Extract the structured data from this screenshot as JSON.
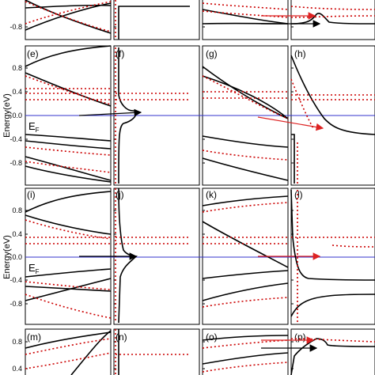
{
  "figure": {
    "y_axis_label": "Energy(eV)",
    "fermi_label_main": "E",
    "fermi_label_sub": "F",
    "colors": {
      "bands_solid": "#000000",
      "bands_dotted": "#cc0000",
      "fermi_line": "#3333cc",
      "arrow_red": "#dd2222",
      "arrow_black": "#000000"
    },
    "rows": [
      {
        "id": "top-partial",
        "panel_labels": [
          "",
          "",
          "",
          ""
        ],
        "y_ticks": [
          "-0.8"
        ]
      },
      {
        "id": "middle-1",
        "panel_labels": [
          "(e)",
          "(f)",
          "(g)",
          "(h)"
        ],
        "y_ticks": [
          "0.8",
          "0.4",
          "0.0",
          "-0.4",
          "-0.8"
        ]
      },
      {
        "id": "middle-2",
        "panel_labels": [
          "(i)",
          "(j)",
          "(k)",
          "(l)"
        ],
        "y_ticks": [
          "0.8",
          "0.4",
          "0.0",
          "-0.4",
          "-0.8"
        ]
      },
      {
        "id": "bottom-partial",
        "panel_labels": [
          "(m)",
          "(n)",
          "(o)",
          "(p)"
        ],
        "y_ticks": [
          "0.8",
          "0.4"
        ]
      }
    ]
  }
}
